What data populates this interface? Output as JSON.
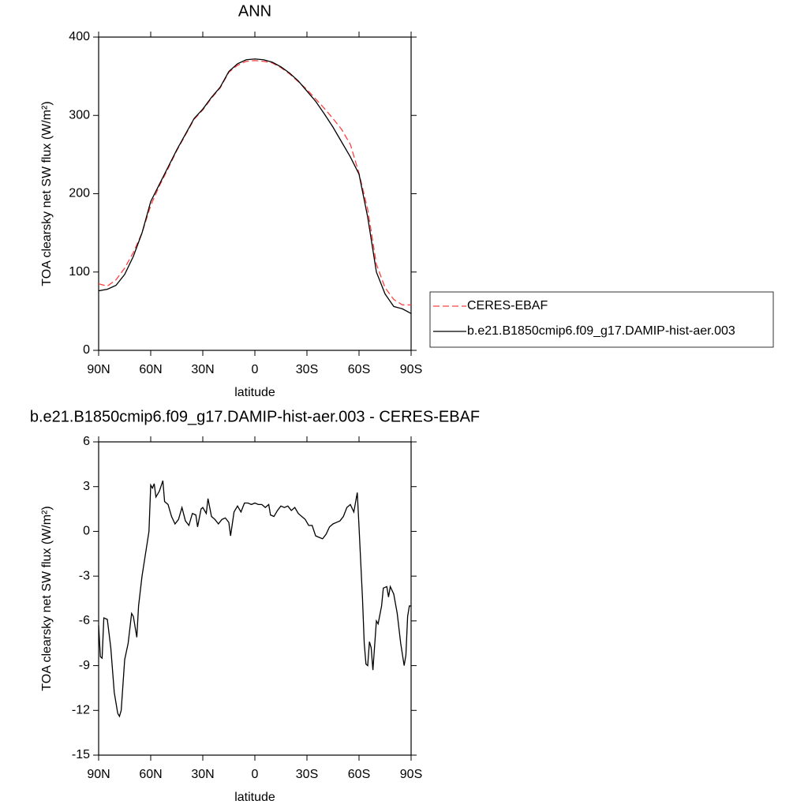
{
  "chart_data": [
    {
      "type": "line",
      "title": "ANN",
      "xlabel": "latitude",
      "ylabel": "TOA clearsky net SW flux (W/m²)",
      "x": [
        90,
        85,
        80,
        75,
        70,
        65,
        60,
        55,
        50,
        45,
        40,
        35,
        30,
        25,
        20,
        15,
        10,
        5,
        0,
        -5,
        -10,
        -15,
        -20,
        -25,
        -30,
        -35,
        -40,
        -45,
        -50,
        -55,
        -60,
        -65,
        -70,
        -75,
        -80,
        -85,
        -90
      ],
      "series": [
        {
          "name": "CERES-EBAF",
          "color": "#ff4040",
          "line_style": "dashed",
          "values": [
            85,
            82,
            90,
            105,
            125,
            150,
            185,
            210,
            232,
            255,
            275,
            295,
            307,
            322,
            335,
            355,
            364,
            369,
            370,
            369,
            367,
            361,
            353,
            343,
            333,
            321,
            309,
            296,
            282,
            263,
            226,
            180,
            110,
            80,
            65,
            58,
            58
          ]
        },
        {
          "name": "b.e21.B1850cmip6.f09_g17.DAMIP-hist-aer.003",
          "color": "#000000",
          "line_style": "solid",
          "values": [
            76,
            78,
            83,
            97,
            120,
            150,
            190,
            212,
            234,
            256,
            276,
            296,
            308,
            323,
            336,
            356,
            366,
            371,
            372,
            371,
            368,
            362,
            354,
            344,
            331,
            318,
            302,
            285,
            266,
            247,
            225,
            170,
            100,
            72,
            56,
            53,
            47
          ]
        }
      ],
      "xlim": [
        90,
        -90
      ],
      "xticks": [
        {
          "value": 90,
          "label": "90N"
        },
        {
          "value": 60,
          "label": "60N"
        },
        {
          "value": 30,
          "label": "30N"
        },
        0,
        {
          "value": -30,
          "label": "30S"
        },
        {
          "value": -60,
          "label": "60S"
        },
        {
          "value": -90,
          "label": "90S"
        }
      ],
      "ylim": [
        0,
        400
      ],
      "yticks": [
        0,
        100,
        200,
        300,
        400
      ],
      "legend": "right"
    },
    {
      "type": "line",
      "title": "b.e21.B1850cmip6.f09_g17.DAMIP-hist-aer.003 - CERES-EBAF",
      "xlabel": "latitude",
      "ylabel": "TOA clearsky net SW flux (W/m²)",
      "x": [
        90,
        89,
        88,
        87,
        85,
        83,
        81,
        79,
        78,
        77,
        75,
        73,
        71,
        70,
        68,
        67,
        65,
        63,
        61,
        60,
        59,
        58,
        57,
        55,
        53,
        52,
        50,
        48,
        46,
        44,
        42,
        40,
        38,
        36,
        34,
        33,
        31,
        30,
        28,
        27,
        25,
        23,
        21,
        19,
        17,
        15,
        14,
        12,
        10,
        8,
        6,
        4,
        2,
        0,
        -2,
        -4,
        -6,
        -8,
        -9,
        -11,
        -13,
        -15,
        -17,
        -19,
        -21,
        -23,
        -25,
        -27,
        -29,
        -31,
        -33,
        -35,
        -37,
        -39,
        -41,
        -43,
        -45,
        -47,
        -49,
        -51,
        -53,
        -55,
        -57,
        -59,
        -60,
        -62,
        -63,
        -64,
        -65,
        -66,
        -67,
        -68,
        -70,
        -71,
        -73,
        -74,
        -76,
        -77,
        -78,
        -80,
        -82,
        -84,
        -86,
        -87,
        -88,
        -89,
        -90
      ],
      "series": [
        {
          "name": "b.e21.B1850cmip6.f09_g17.DAMIP-hist-aer.003 - CERES-EBAF",
          "color": "#000000",
          "line_style": "solid",
          "values": [
            -6.3,
            -8.4,
            -8.5,
            -5.8,
            -5.9,
            -7.8,
            -10.8,
            -12.2,
            -12.4,
            -12.0,
            -8.6,
            -7.5,
            -5.5,
            -5.7,
            -7.1,
            -5.0,
            -3.0,
            -1.5,
            0.0,
            3.1,
            2.9,
            3.2,
            2.3,
            2.7,
            3.4,
            2.0,
            1.8,
            1.0,
            0.5,
            0.8,
            1.6,
            0.7,
            0.4,
            1.2,
            1.1,
            0.3,
            1.5,
            1.6,
            1.2,
            2.2,
            1.0,
            0.8,
            0.5,
            0.8,
            0.9,
            0.6,
            -0.3,
            1.3,
            1.7,
            1.3,
            1.9,
            1.9,
            1.8,
            1.9,
            1.8,
            1.8,
            1.6,
            1.8,
            1.1,
            1.0,
            1.4,
            1.7,
            1.6,
            1.7,
            1.4,
            1.6,
            1.2,
            1.0,
            0.8,
            0.4,
            0.4,
            -0.3,
            -0.4,
            -0.5,
            -0.2,
            0.3,
            0.5,
            0.6,
            0.7,
            1.0,
            1.6,
            1.8,
            1.3,
            2.6,
            0.3,
            -4.5,
            -7.5,
            -8.9,
            -9.0,
            -7.4,
            -7.8,
            -9.3,
            -6.0,
            -6.2,
            -5.0,
            -3.8,
            -3.7,
            -4.4,
            -3.7,
            -4.2,
            -5.5,
            -7.5,
            -9.0,
            -8.3,
            -5.7,
            -5.0,
            -5.0
          ]
        }
      ],
      "xlim": [
        90,
        -90
      ],
      "xticks": [
        {
          "value": 90,
          "label": "90N"
        },
        {
          "value": 60,
          "label": "60N"
        },
        {
          "value": 30,
          "label": "30N"
        },
        0,
        {
          "value": -30,
          "label": "30S"
        },
        {
          "value": -60,
          "label": "60S"
        },
        {
          "value": -90,
          "label": "90S"
        }
      ],
      "ylim": [
        -15,
        6
      ],
      "yticks": [
        -15,
        -12,
        -9,
        -6,
        -3,
        0,
        3,
        6
      ]
    }
  ]
}
